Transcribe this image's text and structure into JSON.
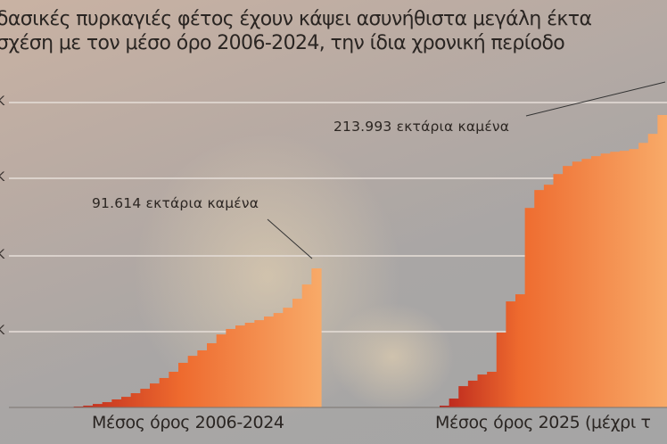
{
  "title": {
    "line1": "δασικές πυρκαγιές φέτος έχουν κάψει ασυνήθιστα μεγάλη έκτα",
    "line2": "σχέση με τον μέσο όρο 2006-2024, την ίδια χρονική περίοδο"
  },
  "chart_data": {
    "type": "area",
    "step": true,
    "grid": true,
    "y_tick_labels": [
      "K",
      "K",
      "K",
      "K"
    ],
    "ylabel": "",
    "colors": {
      "start": "#b8231c",
      "mid": "#ee6a2e",
      "end": "#f8aa68"
    },
    "panels": [
      {
        "xlabel": "Μέσος όρος 2006-2024",
        "annotation": "91.614 εκτάρια καμένα",
        "final_value": 91614,
        "values_k": [
          0.3,
          0.6,
          1.2,
          2.3,
          3.5,
          5.3,
          7.0,
          9.4,
          12.3,
          15.8,
          19.4,
          23.5,
          29.4,
          34.0,
          37.6,
          42.3,
          48.1,
          51.7,
          54.0,
          55.8,
          57.5,
          59.9,
          62.2,
          65.7,
          71.6,
          81.0,
          91.614
        ]
      },
      {
        "xlabel": "Μέσος όρος 2025 (μέχρι τ",
        "annotation": "213.993 εκτάρια καμένα",
        "final_value": 213993,
        "values_k": [
          1.3,
          6.5,
          15.6,
          19.6,
          24.1,
          26.1,
          54.8,
          77.6,
          82.8,
          146.0,
          159.1,
          163.0,
          170.8,
          176.7,
          179.9,
          181.9,
          183.9,
          185.8,
          187.1,
          187.8,
          189.1,
          193.6,
          200.2,
          213.993
        ]
      }
    ]
  }
}
